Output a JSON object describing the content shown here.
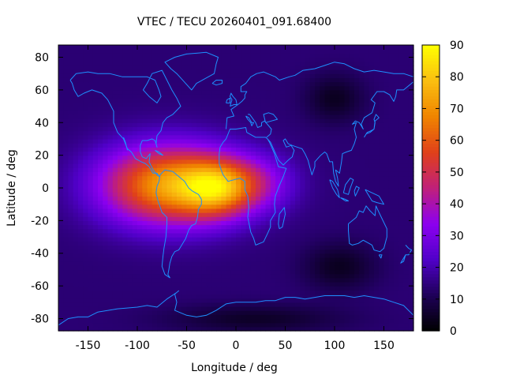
{
  "chart_data": {
    "type": "heatmap",
    "title": "VTEC / TECU 20260401_091.68400",
    "xlabel": "Longitude / deg",
    "ylabel": "Latitude / deg",
    "xlim": [
      -180,
      180
    ],
    "ylim": [
      -87.5,
      87.5
    ],
    "xticks": [
      -150,
      -100,
      -50,
      0,
      50,
      100,
      150
    ],
    "yticks": [
      -80,
      -60,
      -40,
      -20,
      0,
      20,
      40,
      60,
      80
    ],
    "colorbar": {
      "min": 0,
      "max": 90,
      "ticks": [
        0,
        10,
        20,
        30,
        40,
        50,
        60,
        70,
        80,
        90
      ]
    },
    "colormap": [
      "#000000",
      "#1e0058",
      "#5000c8",
      "#8c00f0",
      "#c0207a",
      "#e0401a",
      "#f08400",
      "#fabe10",
      "#ffff00"
    ],
    "coastline_color": "#1e90ff",
    "grid_resolution_deg": {
      "lon": 5,
      "lat": 2.5
    },
    "background_vtec": 14,
    "features": [
      {
        "kind": "peak",
        "lon": -68,
        "lat": 2,
        "vtec": 72,
        "sigma_lon": 48,
        "sigma_lat": 17
      },
      {
        "kind": "peak",
        "lon": -20,
        "lat": 0,
        "vtec": 50,
        "sigma_lon": 25,
        "sigma_lat": 12
      },
      {
        "kind": "peak",
        "lon": 20,
        "lat": 3,
        "vtec": 32,
        "sigma_lon": 28,
        "sigma_lat": 12
      },
      {
        "kind": "trough",
        "lon": 100,
        "lat": 55,
        "vtec": 4,
        "sigma_lon": 20,
        "sigma_lat": 10
      },
      {
        "kind": "trough",
        "lon": 105,
        "lat": -48,
        "vtec": 4,
        "sigma_lon": 25,
        "sigma_lat": 10
      },
      {
        "kind": "trough",
        "lon": 20,
        "lat": -80,
        "vtec": 5,
        "sigma_lon": 60,
        "sigma_lat": 6
      }
    ]
  }
}
